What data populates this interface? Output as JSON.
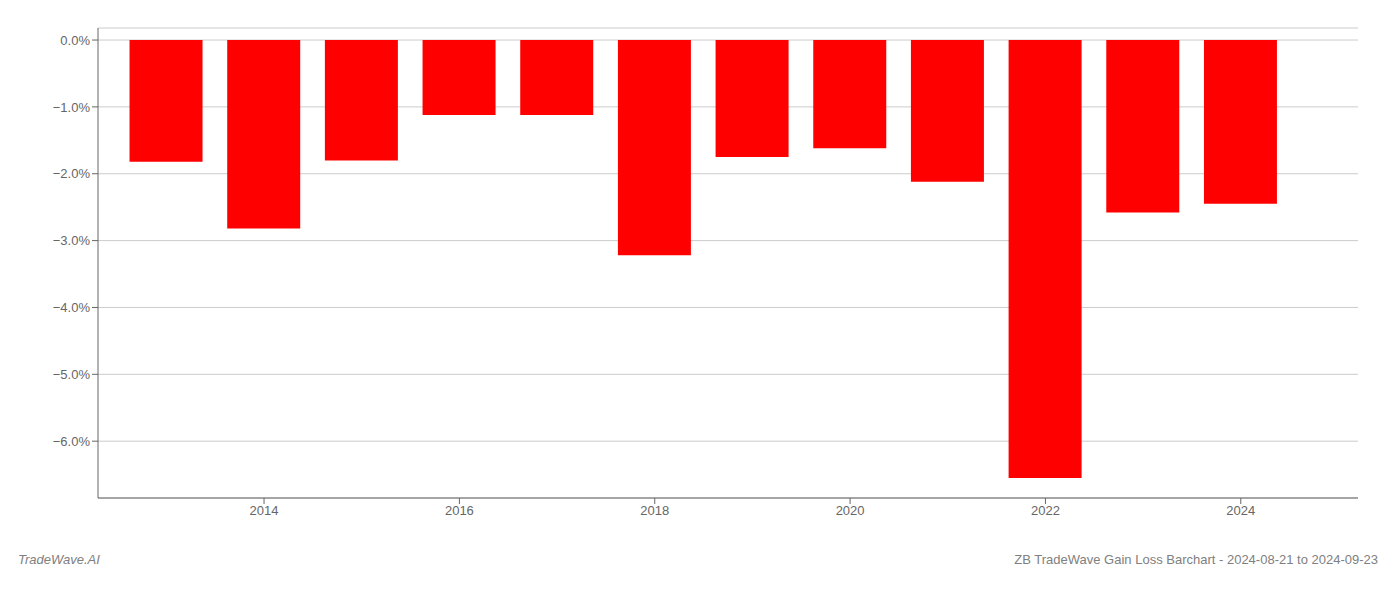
{
  "chart_data": {
    "type": "bar",
    "x": [
      2013,
      2014,
      2015,
      2016,
      2017,
      2018,
      2019,
      2020,
      2021,
      2022,
      2023,
      2024
    ],
    "values": [
      -1.82,
      -2.82,
      -1.8,
      -1.12,
      -1.12,
      -3.22,
      -1.75,
      -1.62,
      -2.12,
      -6.55,
      -2.58,
      -2.45
    ],
    "color": "#ff0000",
    "xlim": [
      2012.3,
      2025.2
    ],
    "xticks": [
      2014,
      2016,
      2018,
      2020,
      2022,
      2024
    ],
    "ylim": [
      -6.85,
      0.18
    ],
    "yticks": [
      {
        "value": 0.0,
        "label": "0.0%"
      },
      {
        "value": -1.0,
        "label": "−1.0%"
      },
      {
        "value": -2.0,
        "label": "−2.0%"
      },
      {
        "value": -3.0,
        "label": "−3.0%"
      },
      {
        "value": -4.0,
        "label": "−4.0%"
      },
      {
        "value": -5.0,
        "label": "−5.0%"
      },
      {
        "value": -6.0,
        "label": "−6.0%"
      }
    ],
    "grid": true,
    "annotations": [
      "TradeWave.AI",
      "ZB TradeWave Gain Loss Barchart - 2024-08-21 to 2024-09-23"
    ]
  }
}
